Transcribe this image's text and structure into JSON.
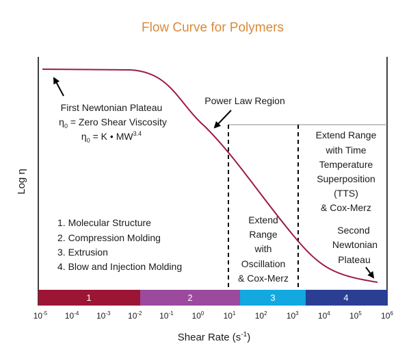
{
  "title": "Flow Curve for Polymers",
  "y_axis_label": "Log η",
  "x_axis_label": "Shear Rate (s",
  "x_axis_label_sup": "-1",
  "x_axis_label_end": ")",
  "x_ticks": [
    {
      "base": "10",
      "exp": "-5"
    },
    {
      "base": "10",
      "exp": "-4"
    },
    {
      "base": "10",
      "exp": "-3"
    },
    {
      "base": "10",
      "exp": "-2"
    },
    {
      "base": "10",
      "exp": "-1"
    },
    {
      "base": "10",
      "exp": "0"
    },
    {
      "base": "10",
      "exp": "1"
    },
    {
      "base": "10",
      "exp": "2"
    },
    {
      "base": "10",
      "exp": "3"
    },
    {
      "base": "10",
      "exp": "4"
    },
    {
      "base": "10",
      "exp": "5"
    },
    {
      "base": "10",
      "exp": "6"
    }
  ],
  "bands": [
    {
      "label": "1",
      "color": "#9c1535"
    },
    {
      "label": "2",
      "color": "#9b4a9e"
    },
    {
      "label": "3",
      "color": "#12a8e0"
    },
    {
      "label": "4",
      "color": "#2a3f94"
    }
  ],
  "curve_color": "#9c1a47",
  "first_plateau": {
    "line1": "First Newtonian Plateau",
    "line2_sym": "η",
    "line2_sub": "0",
    "line2_rest": " = Zero Shear Viscosity",
    "line3_sym": "η",
    "line3_sub": "0",
    "line3_rest": " = K • MW",
    "line3_sup": "3.4"
  },
  "power_law": "Power Law Region",
  "applications": [
    "1. Molecular Structure",
    "2. Compression Molding",
    "3. Extrusion",
    "4. Blow and Injection Molding"
  ],
  "oscillation": [
    "Extend",
    "Range",
    "with",
    "Oscillation",
    "& Cox-Merz"
  ],
  "tts": [
    "Extend Range",
    "with Time",
    "Temperature",
    "Superposition",
    "(TTS)",
    "& Cox-Merz"
  ],
  "second_plateau": [
    "Second",
    "Newtonian",
    "Plateau"
  ]
}
